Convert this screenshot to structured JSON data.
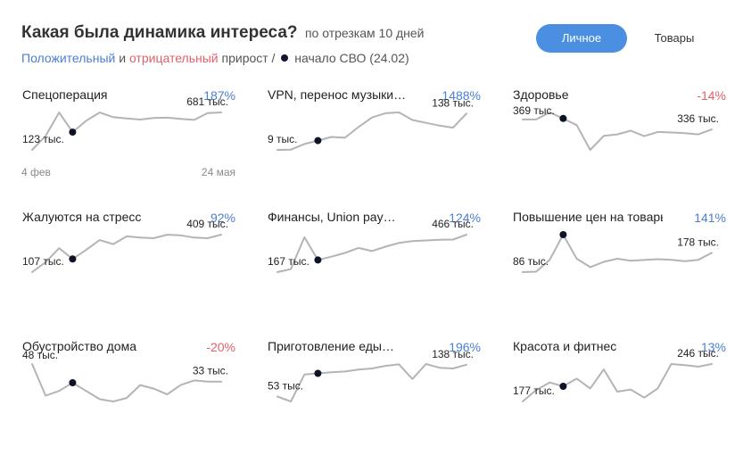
{
  "header": {
    "title": "Какая была динамика интереса?",
    "subtitle": "по отрезкам 10 дней",
    "legend_positive": "Положительный",
    "legend_and": "и",
    "legend_negative": "отрицательный",
    "legend_growth": "прирост /",
    "legend_marker": "начало СВО (24.02)"
  },
  "toggle": {
    "personal_label": "Личное",
    "goods_label": "Товары",
    "active": "personal_label"
  },
  "colors": {
    "positive": "#4a7fd1",
    "negative": "#e0616b",
    "line": "#b4b4b4",
    "marker": "#0f1328",
    "toggle_active": "#4a8fe2"
  },
  "chart_data": [
    {
      "type": "line",
      "title": "Спецоперация",
      "change": "187%",
      "trend": "positive",
      "x_start_label": "4 фев",
      "x_end_label": "24 мая",
      "marker_index": 3,
      "start_label": "123 тыс.",
      "end_label": "681 тыс.",
      "values": [
        123,
        330,
        680,
        388,
        556,
        680,
        610,
        590,
        575,
        597,
        602,
        585,
        569,
        672,
        681
      ]
    },
    {
      "type": "line",
      "title": "VPN, перенос музыки…",
      "change": "1488%",
      "trend": "positive",
      "marker_index": 3,
      "start_label": "9 тыс.",
      "end_label": "138 тыс.",
      "values": [
        9,
        10,
        30,
        42,
        55,
        52,
        90,
        124,
        139,
        142,
        115,
        105,
        95,
        88,
        138
      ]
    },
    {
      "type": "line",
      "title": "Здоровье",
      "change": "-14%",
      "trend": "negative",
      "marker_index": 3,
      "start_label": "369 тыс.",
      "end_label": "336 тыс.",
      "values": [
        369,
        369,
        392,
        372,
        350,
        269,
        315,
        320,
        332,
        314,
        328,
        326,
        324,
        320,
        336
      ]
    },
    {
      "type": "line",
      "title": "Жалуются на стресс",
      "change": "92%",
      "trend": "positive",
      "marker_index": 3,
      "start_label": "107 тыс.",
      "end_label": "409 тыс.",
      "values": [
        107,
        187,
        300,
        213,
        286,
        365,
        332,
        395,
        385,
        380,
        408,
        403,
        385,
        380,
        409
      ]
    },
    {
      "type": "line",
      "title": "Финансы, Union pay…",
      "change": "124%",
      "trend": "positive",
      "marker_index": 3,
      "start_label": "167 тыс.",
      "end_label": "466 тыс.",
      "values": [
        167,
        191,
        445,
        264,
        290,
        320,
        360,
        335,
        370,
        400,
        415,
        420,
        425,
        427,
        466
      ]
    },
    {
      "type": "line",
      "title": "Повышение цен на товары",
      "change": "141%",
      "trend": "positive",
      "marker_index": 3,
      "start_label": "86 тыс.",
      "end_label": "178 тыс.",
      "values": [
        86,
        88,
        145,
        265,
        150,
        110,
        135,
        150,
        140,
        144,
        148,
        145,
        138,
        145,
        178
      ]
    },
    {
      "type": "line",
      "title": "Обустройство дома",
      "change": "-20%",
      "trend": "negative",
      "marker_index": 3,
      "start_label": "48 тыс.",
      "end_label": "33 тыс.",
      "values": [
        48,
        21,
        25,
        32,
        25,
        18,
        16,
        19,
        30,
        27,
        22,
        30,
        34,
        33,
        33
      ]
    },
    {
      "type": "line",
      "title": "Приготовление еды…",
      "change": "196%",
      "trend": "positive",
      "marker_index": 3,
      "start_label": "53 тыс.",
      "end_label": "138 тыс.",
      "values": [
        53,
        40,
        112,
        115,
        118,
        120,
        125,
        128,
        135,
        139,
        100,
        140,
        130,
        128,
        138
      ]
    },
    {
      "type": "line",
      "title": "Красота и фитнес",
      "change": "13%",
      "trend": "positive",
      "marker_index": 3,
      "start_label": "177 тыс.",
      "end_label": "246 тыс.",
      "values": [
        177,
        198,
        212,
        205,
        219,
        201,
        236,
        195,
        199,
        184,
        201,
        246,
        244,
        241,
        246
      ]
    }
  ]
}
